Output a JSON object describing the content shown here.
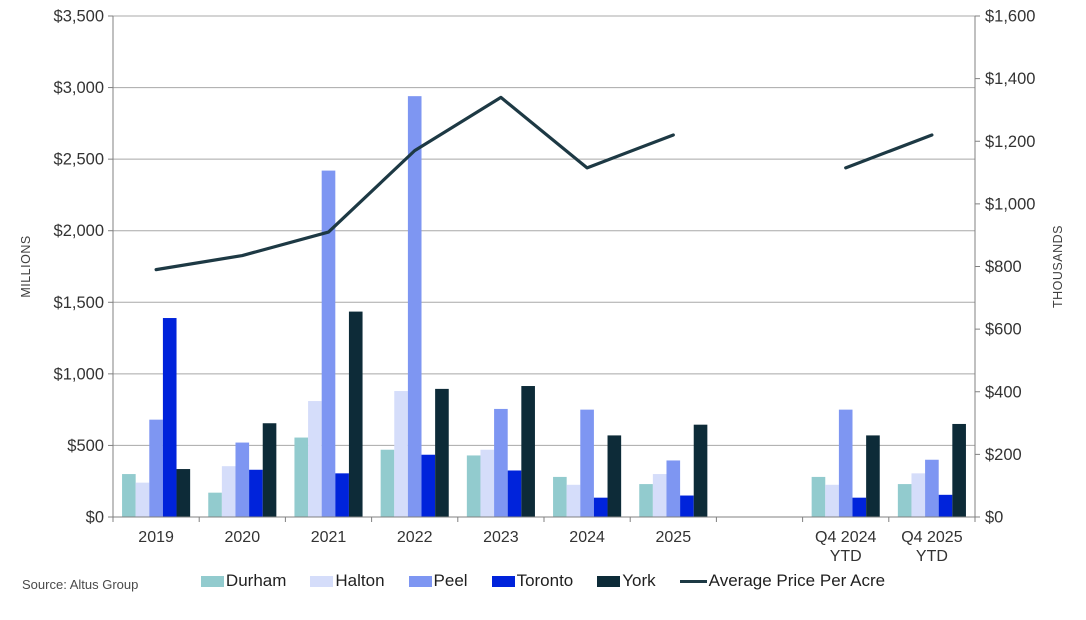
{
  "source_note": "Source: Altus Group",
  "colors": {
    "background": "#ffffff",
    "gridline": "#a8a8a8",
    "axis_line": "#808080",
    "tick_text": "#333333",
    "axis_title_text": "#404040",
    "legend_text": "#1f1f1f",
    "source_text": "#4a4a4a"
  },
  "chart_data": {
    "type": "bar",
    "subtype": "grouped-bars-with-line-overlay-dual-axis",
    "title": "",
    "grid": "horizontal-on",
    "legend_position": "bottom",
    "left_axis": {
      "label": "MILLIONS",
      "min": 0,
      "max": 3500,
      "tick_interval": 500,
      "tick_labels": [
        "$0",
        "$500",
        "$1,000",
        "$1,500",
        "$2,000",
        "$2,500",
        "$3,000",
        "$3,500"
      ]
    },
    "right_axis": {
      "label": "THOUSANDS",
      "min": 0,
      "max": 1600,
      "tick_interval": 200,
      "tick_labels": [
        "$0",
        "$200",
        "$400",
        "$600",
        "$800",
        "$1,000",
        "$1,200",
        "$1,400",
        "$1,600"
      ]
    },
    "categories": [
      {
        "id": "2019",
        "label_lines": [
          "2019"
        ]
      },
      {
        "id": "2020",
        "label_lines": [
          "2020"
        ]
      },
      {
        "id": "2021",
        "label_lines": [
          "2021"
        ]
      },
      {
        "id": "2022",
        "label_lines": [
          "2022"
        ]
      },
      {
        "id": "2023",
        "label_lines": [
          "2023"
        ]
      },
      {
        "id": "2024",
        "label_lines": [
          "2024"
        ]
      },
      {
        "id": "2025",
        "label_lines": [
          "2025"
        ]
      },
      {
        "id": "gap",
        "label_lines": []
      },
      {
        "id": "q4-2024-ytd",
        "label_lines": [
          "Q4 2024",
          "YTD"
        ]
      },
      {
        "id": "q4-2025-ytd",
        "label_lines": [
          "Q4 2025",
          "YTD"
        ]
      }
    ],
    "series": [
      {
        "name": "Durham",
        "color": "#92cbce",
        "values": [
          300,
          170,
          555,
          470,
          430,
          280,
          230,
          null,
          280,
          230
        ]
      },
      {
        "name": "Halton",
        "color": "#d5ddfa",
        "values": [
          240,
          355,
          810,
          880,
          470,
          225,
          300,
          null,
          225,
          305
        ]
      },
      {
        "name": "Peel",
        "color": "#7e96f2",
        "values": [
          680,
          520,
          2420,
          2940,
          755,
          750,
          395,
          null,
          750,
          400
        ]
      },
      {
        "name": "Toronto",
        "color": "#0023db",
        "values": [
          1390,
          330,
          305,
          435,
          325,
          135,
          150,
          null,
          135,
          155
        ]
      },
      {
        "name": "York",
        "color": "#0d2b38",
        "values": [
          335,
          655,
          1435,
          895,
          915,
          570,
          645,
          null,
          570,
          650
        ]
      }
    ],
    "line_series": {
      "name": "Average Price Per Acre",
      "color": "#1d3944",
      "axis": "right",
      "segments": [
        {
          "x_indices": [
            0,
            1,
            2,
            3,
            4,
            5,
            6
          ],
          "values": [
            790,
            835,
            910,
            1170,
            1340,
            1115,
            1220
          ]
        },
        {
          "x_indices": [
            8,
            9
          ],
          "values": [
            1115,
            1220
          ]
        }
      ]
    }
  }
}
